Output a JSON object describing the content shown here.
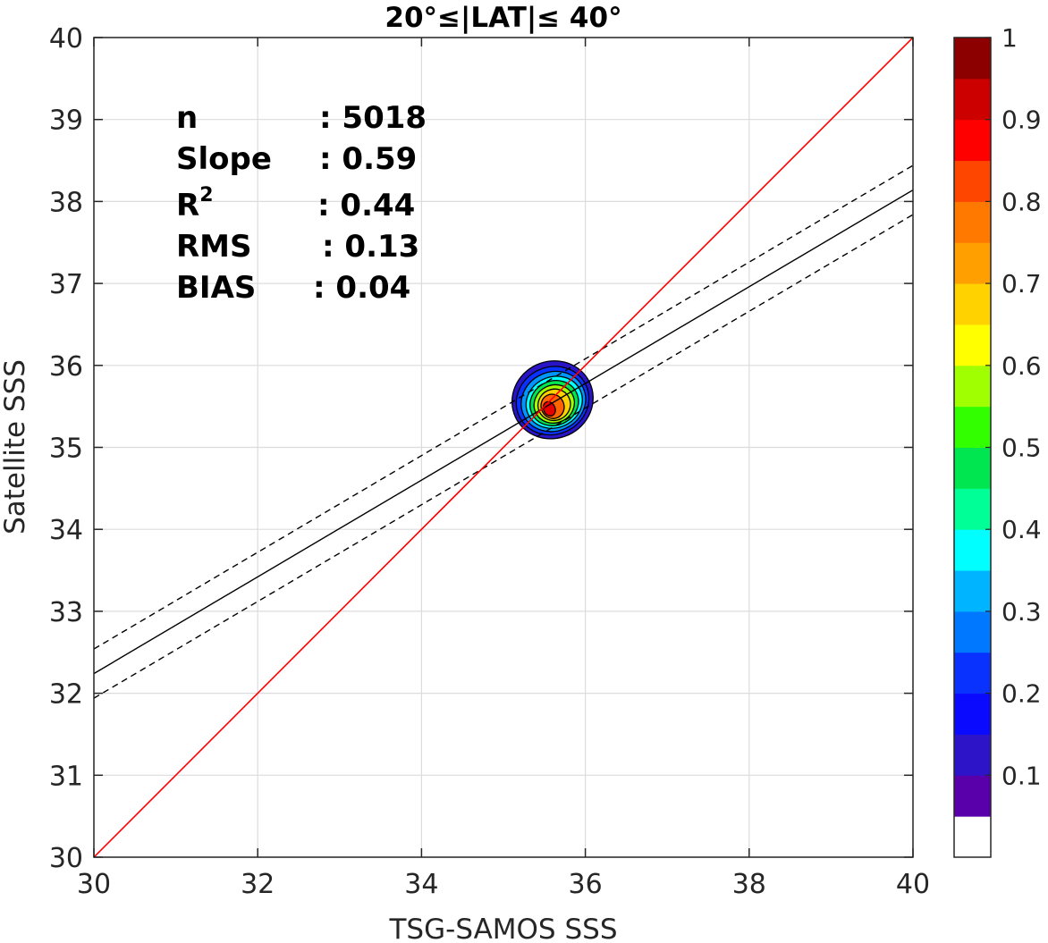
{
  "chart_data": {
    "type": "heatmap",
    "title": "20°≤|LAT|≤ 40°",
    "xlabel": "TSG-SAMOS SSS",
    "ylabel": "Satellite SSS",
    "xlim": [
      30,
      40
    ],
    "ylim": [
      30,
      40
    ],
    "xticks": [
      30,
      32,
      34,
      36,
      38,
      40
    ],
    "yticks": [
      30,
      31,
      32,
      33,
      34,
      35,
      36,
      37,
      38,
      39,
      40
    ],
    "grid": true,
    "stats": [
      {
        "label": "n",
        "value": ": 5018"
      },
      {
        "label": "Slope",
        "value": ": 0.59"
      },
      {
        "label": "R",
        "sup": "2",
        "value": ": 0.44"
      },
      {
        "label": "RMS",
        "value": ": 0.13"
      },
      {
        "label": "BIAS",
        "value": ": 0.04"
      }
    ],
    "lines": {
      "one_to_one": {
        "x": [
          30,
          40
        ],
        "y": [
          30,
          40
        ],
        "color": "#ff0000"
      },
      "fit": {
        "x": [
          30,
          40
        ],
        "y": [
          32.24,
          38.14
        ],
        "color": "#000000"
      },
      "fit_upper": {
        "x": [
          30,
          40
        ],
        "y": [
          32.54,
          38.44
        ],
        "color": "#000000",
        "style": "dashed"
      },
      "fit_lower": {
        "x": [
          30,
          40
        ],
        "y": [
          31.94,
          37.84
        ],
        "color": "#000000",
        "style": "dashed"
      }
    },
    "density": {
      "center": [
        35.55,
        35.5
      ],
      "levels": [
        {
          "level": 0.1,
          "rx": 0.5,
          "ry": 0.47,
          "cx": 35.6,
          "cy": 35.58,
          "color": "#2a14c8"
        },
        {
          "level": 0.2,
          "rx": 0.45,
          "ry": 0.41,
          "cx": 35.6,
          "cy": 35.57,
          "color": "#0a32ff"
        },
        {
          "level": 0.3,
          "rx": 0.4,
          "ry": 0.36,
          "cx": 35.61,
          "cy": 35.56,
          "color": "#0096ff"
        },
        {
          "level": 0.4,
          "rx": 0.35,
          "ry": 0.31,
          "cx": 35.62,
          "cy": 35.55,
          "color": "#00ffff"
        },
        {
          "level": 0.5,
          "rx": 0.3,
          "ry": 0.27,
          "cx": 35.62,
          "cy": 35.54,
          "color": "#00e650"
        },
        {
          "level": 0.6,
          "rx": 0.25,
          "ry": 0.23,
          "cx": 35.62,
          "cy": 35.53,
          "color": "#a0ff00"
        },
        {
          "level": 0.7,
          "rx": 0.2,
          "ry": 0.19,
          "cx": 35.62,
          "cy": 35.52,
          "color": "#ffd200"
        },
        {
          "level": 0.8,
          "rx": 0.14,
          "ry": 0.15,
          "cx": 35.6,
          "cy": 35.5,
          "color": "#ff6400"
        },
        {
          "level": 0.9,
          "rx": 0.07,
          "ry": 0.09,
          "cx": 35.56,
          "cy": 35.47,
          "color": "#e60000"
        }
      ]
    },
    "colorbar": {
      "range": [
        0,
        1
      ],
      "ticks": [
        0.1,
        0.2,
        0.3,
        0.4,
        0.5,
        0.6,
        0.7,
        0.8,
        0.9,
        1
      ],
      "tick_labels": [
        "0.1",
        "0.2",
        "0.3",
        "0.4",
        "0.5",
        "0.6",
        "0.7",
        "0.8",
        "0.9",
        "1"
      ],
      "colors": [
        "#ffffff",
        "#5a00aa",
        "#2d14c8",
        "#0a0aff",
        "#0a32ff",
        "#0078ff",
        "#00b4ff",
        "#00ffff",
        "#00ff96",
        "#00e650",
        "#32ff00",
        "#a0ff00",
        "#ffff00",
        "#ffd200",
        "#ffa000",
        "#ff7800",
        "#ff4600",
        "#ff0000",
        "#cd0000",
        "#8c0000"
      ]
    }
  }
}
